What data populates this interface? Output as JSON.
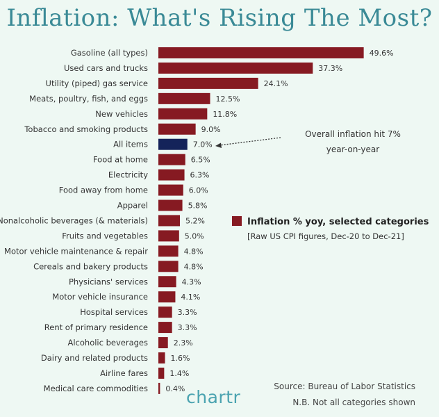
{
  "header": {
    "title": "Inflation: What's Rising The Most?"
  },
  "chart_data": {
    "type": "bar",
    "orientation": "horizontal",
    "categories": [
      "Gasoline (all types)",
      "Used cars and trucks",
      "Utility (piped) gas service",
      "Meats, poultry, fish, and eggs",
      "New vehicles",
      "Tobacco and smoking products",
      "All items",
      "Food at home",
      "Electricity",
      "Food away from home",
      "Apparel",
      "Nonalcoholic beverages (& materials)",
      "Fruits and vegetables",
      "Motor vehicle maintenance & repair",
      "Cereals and bakery products",
      "Physicians' services",
      "Motor vehicle insurance",
      "Hospital services",
      "Rent of primary residence",
      "Alcoholic beverages",
      "Dairy and related products",
      "Airline fares",
      "Medical care commodities"
    ],
    "values": [
      49.6,
      37.3,
      24.1,
      12.5,
      11.8,
      9.0,
      7.0,
      6.5,
      6.3,
      6.0,
      5.8,
      5.2,
      5.0,
      4.8,
      4.8,
      4.3,
      4.1,
      3.3,
      3.3,
      2.3,
      1.6,
      1.4,
      0.4
    ],
    "value_labels": [
      "49.6%",
      "37.3%",
      "24.1%",
      "12.5%",
      "11.8%",
      "9.0%",
      "7.0%",
      "6.5%",
      "6.3%",
      "6.0%",
      "5.8%",
      "5.2%",
      "5.0%",
      "4.8%",
      "4.8%",
      "4.3%",
      "4.1%",
      "3.3%",
      "3.3%",
      "2.3%",
      "1.6%",
      "1.4%",
      "0.4%"
    ],
    "highlight_index": 6,
    "colors": {
      "bar": "#861a22",
      "highlight": "#14235a"
    },
    "xlim": [
      0,
      50
    ],
    "legend": {
      "label": "Inflation % yoy, selected categories",
      "sublabel": "[Raw US CPI figures, Dec-20 to Dec-21]",
      "placement": "right"
    },
    "annotation": {
      "line1": "Overall inflation hit 7%",
      "line2": "year-on-year"
    },
    "grid": false
  },
  "footer": {
    "logo": "chartr",
    "source": "Source: Bureau of Labor Statistics",
    "note": "N.B. Not all categories shown"
  }
}
